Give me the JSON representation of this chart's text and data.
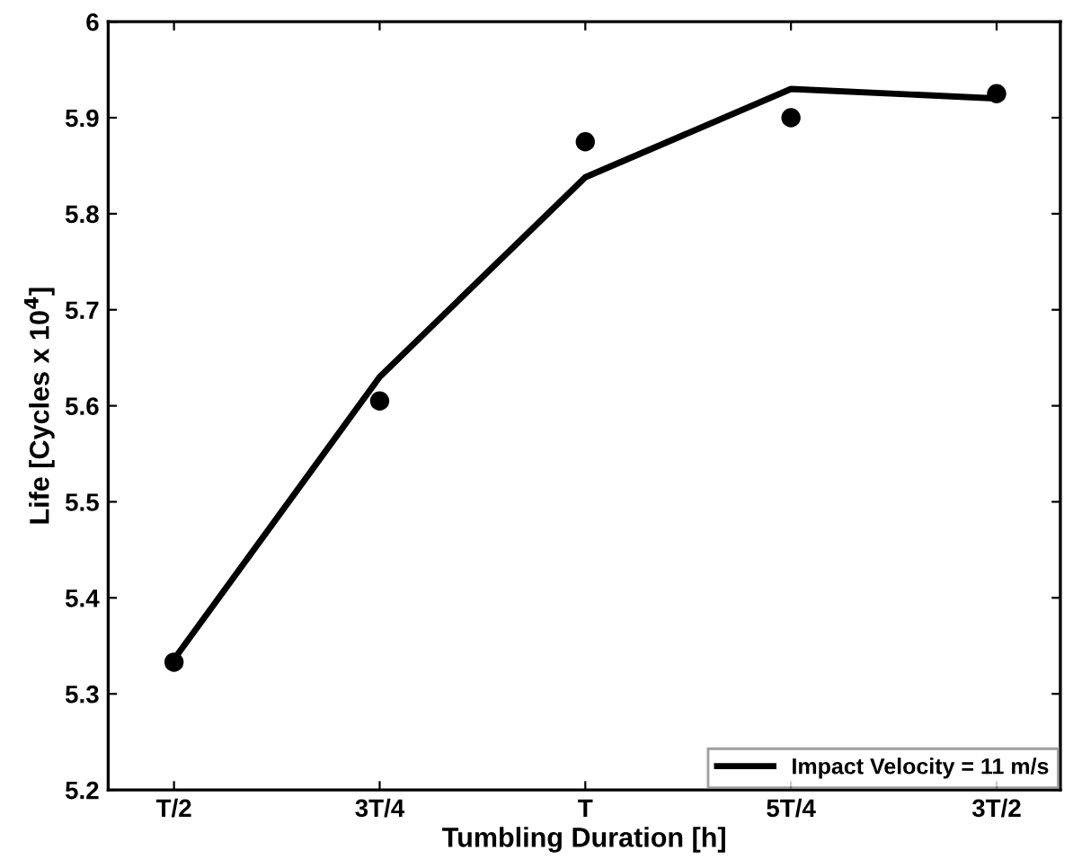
{
  "chart_data": {
    "type": "line",
    "xlabel": "Tumbling Duration [h]",
    "ylabel": "Life [Cycles x 10$^{4}$]",
    "categories": [
      "T/2",
      "3T/4",
      "T",
      "5T/4",
      "3T/2"
    ],
    "series": [
      {
        "name": "Impact Velocity = 11 m/s",
        "color": "#000000",
        "marker": "none",
        "line_style": "solid",
        "values": [
          5.336,
          5.63,
          5.838,
          5.93,
          5.92
        ]
      },
      {
        "type": "scatter",
        "color": "#000000",
        "marker": "circle",
        "values": [
          5.333,
          5.605,
          5.875,
          5.9,
          5.925
        ]
      }
    ],
    "ylim": [
      5.2,
      6
    ],
    "yticks": [
      5.2,
      5.3,
      5.4,
      5.5,
      5.6,
      5.7,
      5.8,
      5.9,
      6
    ],
    "grid": false,
    "legend": "bottom right"
  }
}
